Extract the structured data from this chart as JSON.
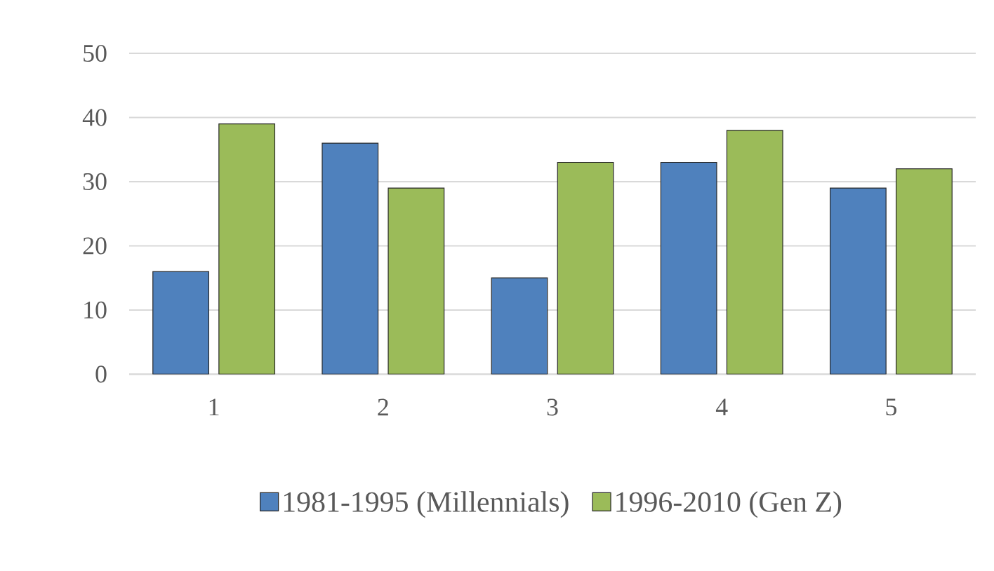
{
  "chart_data": {
    "type": "bar",
    "categories": [
      "1",
      "2",
      "3",
      "4",
      "5"
    ],
    "series": [
      {
        "name": "1981-1995 (Millennials)",
        "color": "#4f81bd",
        "values": [
          16,
          36,
          15,
          33,
          29
        ]
      },
      {
        "name": "1996-2010 (Gen Z)",
        "color": "#9bbb59",
        "values": [
          39,
          29,
          33,
          38,
          32
        ]
      }
    ],
    "ylim": [
      0,
      50
    ],
    "yticks": [
      0,
      10,
      20,
      30,
      40,
      50
    ],
    "grid": "y",
    "legend": "bottom"
  }
}
